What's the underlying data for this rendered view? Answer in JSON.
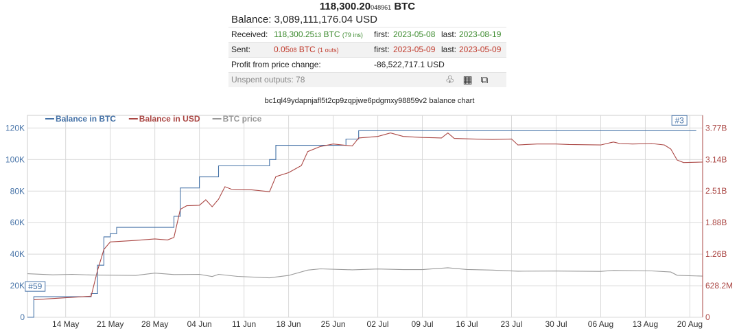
{
  "summary": {
    "total_main": "118,300.20",
    "total_small": "048961",
    "total_unit": "BTC",
    "balance_label": "Balance:",
    "balance_value": "3,089,111,176.04 USD",
    "received": {
      "label": "Received:",
      "amount_main": "118,300.25",
      "amount_small": "13",
      "amount_unit": "BTC",
      "count": "(79 ins)",
      "first_label": "first:",
      "first_date": "2023-05-08",
      "last_label": "last:",
      "last_date": "2023-08-19"
    },
    "sent": {
      "label": "Sent:",
      "amount_main": "0.05",
      "amount_small": "08",
      "amount_unit": "BTC",
      "count": "(1 outs)",
      "first_label": "first:",
      "first_date": "2023-05-09",
      "last_label": "last:",
      "last_date": "2023-05-09"
    },
    "profit_label": "Profit from price change:",
    "profit_value": "-86,522,717.1 USD",
    "unspent_label": "Unspent outputs: 78",
    "icons": [
      "bell-icon",
      "qr-code-icon",
      "copy-icon"
    ]
  },
  "chart_title": "bc1ql49ydapnjafl5t2cp9zqpjwe6pdgmxy98859v2 balance chart",
  "chart_data": {
    "type": "line",
    "x_range": [
      "2023-05-08",
      "2023-08-22"
    ],
    "x_ticks": [
      "14 May",
      "21 May",
      "28 May",
      "04 Jun",
      "11 Jun",
      "18 Jun",
      "25 Jun",
      "02 Jul",
      "09 Jul",
      "16 Jul",
      "23 Jul",
      "30 Jul",
      "06 Aug",
      "13 Aug",
      "20 Aug"
    ],
    "y_left_ticks": [
      "0",
      "20K",
      "40K",
      "60K",
      "80K",
      "100K",
      "120K"
    ],
    "y_left_range": [
      0,
      128000
    ],
    "y_right_ticks": [
      "0",
      "628.2M",
      "1.26B",
      "1.88B",
      "2.51B",
      "3.14B",
      "3.77B"
    ],
    "y_right_range": [
      0,
      4020000000
    ],
    "grid": true,
    "legend_position": "top-left",
    "series": [
      {
        "name": "Balance in BTC",
        "color": "#4572a7",
        "axis": "left",
        "step": true,
        "points": [
          [
            "2023-05-08",
            0
          ],
          [
            "2023-05-09",
            13000
          ],
          [
            "2023-05-18",
            15000
          ],
          [
            "2023-05-19",
            33000
          ],
          [
            "2023-05-20",
            51000
          ],
          [
            "2023-05-21",
            53000
          ],
          [
            "2023-05-22",
            57000
          ],
          [
            "2023-05-31",
            64000
          ],
          [
            "2023-06-01",
            82000
          ],
          [
            "2023-06-04",
            89000
          ],
          [
            "2023-06-07",
            96000
          ],
          [
            "2023-06-15",
            100000
          ],
          [
            "2023-06-16",
            109000
          ],
          [
            "2023-06-27",
            113000
          ],
          [
            "2023-06-29",
            118300
          ],
          [
            "2023-08-21",
            118300
          ]
        ]
      },
      {
        "name": "Balance in USD",
        "color": "#aa4643",
        "axis": "right",
        "points": [
          [
            "2023-05-09",
            350000000
          ],
          [
            "2023-05-18",
            420000000
          ],
          [
            "2023-05-19",
            930000000
          ],
          [
            "2023-05-20",
            1350000000
          ],
          [
            "2023-05-21",
            1500000000
          ],
          [
            "2023-05-25",
            1530000000
          ],
          [
            "2023-05-28",
            1560000000
          ],
          [
            "2023-05-30",
            1540000000
          ],
          [
            "2023-05-31",
            1590000000
          ],
          [
            "2023-06-01",
            2150000000
          ],
          [
            "2023-06-02",
            2220000000
          ],
          [
            "2023-06-04",
            2230000000
          ],
          [
            "2023-06-05",
            2340000000
          ],
          [
            "2023-06-06",
            2200000000
          ],
          [
            "2023-06-07",
            2350000000
          ],
          [
            "2023-06-08",
            2600000000
          ],
          [
            "2023-06-09",
            2550000000
          ],
          [
            "2023-06-12",
            2540000000
          ],
          [
            "2023-06-15",
            2500000000
          ],
          [
            "2023-06-16",
            2800000000
          ],
          [
            "2023-06-18",
            2880000000
          ],
          [
            "2023-06-20",
            3020000000
          ],
          [
            "2023-06-21",
            3300000000
          ],
          [
            "2023-06-23",
            3400000000
          ],
          [
            "2023-06-25",
            3450000000
          ],
          [
            "2023-06-28",
            3410000000
          ],
          [
            "2023-06-29",
            3570000000
          ],
          [
            "2023-07-02",
            3600000000
          ],
          [
            "2023-07-04",
            3670000000
          ],
          [
            "2023-07-06",
            3600000000
          ],
          [
            "2023-07-09",
            3580000000
          ],
          [
            "2023-07-12",
            3570000000
          ],
          [
            "2023-07-13",
            3670000000
          ],
          [
            "2023-07-14",
            3560000000
          ],
          [
            "2023-07-17",
            3550000000
          ],
          [
            "2023-07-20",
            3540000000
          ],
          [
            "2023-07-23",
            3550000000
          ],
          [
            "2023-07-24",
            3430000000
          ],
          [
            "2023-07-27",
            3450000000
          ],
          [
            "2023-07-30",
            3450000000
          ],
          [
            "2023-08-01",
            3440000000
          ],
          [
            "2023-08-06",
            3430000000
          ],
          [
            "2023-08-08",
            3490000000
          ],
          [
            "2023-08-09",
            3460000000
          ],
          [
            "2023-08-11",
            3450000000
          ],
          [
            "2023-08-14",
            3460000000
          ],
          [
            "2023-08-16",
            3430000000
          ],
          [
            "2023-08-17",
            3350000000
          ],
          [
            "2023-08-18",
            3130000000
          ],
          [
            "2023-08-19",
            3080000000
          ],
          [
            "2023-08-22",
            3090000000
          ]
        ]
      },
      {
        "name": "BTC price",
        "color": "#999999",
        "axis": "left",
        "points": [
          [
            "2023-05-08",
            27600
          ],
          [
            "2023-05-12",
            26900
          ],
          [
            "2023-05-15",
            27200
          ],
          [
            "2023-05-18",
            26800
          ],
          [
            "2023-05-21",
            26700
          ],
          [
            "2023-05-25",
            26500
          ],
          [
            "2023-05-28",
            28000
          ],
          [
            "2023-05-31",
            27100
          ],
          [
            "2023-06-04",
            27200
          ],
          [
            "2023-06-06",
            25800
          ],
          [
            "2023-06-07",
            27200
          ],
          [
            "2023-06-10",
            25900
          ],
          [
            "2023-06-15",
            25000
          ],
          [
            "2023-06-18",
            26500
          ],
          [
            "2023-06-21",
            29900
          ],
          [
            "2023-06-23",
            30700
          ],
          [
            "2023-06-28",
            30100
          ],
          [
            "2023-07-02",
            30600
          ],
          [
            "2023-07-06",
            30200
          ],
          [
            "2023-07-09",
            30200
          ],
          [
            "2023-07-13",
            31400
          ],
          [
            "2023-07-16",
            30300
          ],
          [
            "2023-07-20",
            29900
          ],
          [
            "2023-07-24",
            29200
          ],
          [
            "2023-07-30",
            29300
          ],
          [
            "2023-08-06",
            29100
          ],
          [
            "2023-08-08",
            29700
          ],
          [
            "2023-08-14",
            29400
          ],
          [
            "2023-08-17",
            28700
          ],
          [
            "2023-08-18",
            26600
          ],
          [
            "2023-08-22",
            26100
          ]
        ]
      }
    ],
    "annotations": [
      {
        "text": "#59",
        "x": "2023-05-09",
        "y": 13000
      },
      {
        "text": "#3",
        "x": "2023-08-19",
        "y": 118300
      }
    ]
  }
}
